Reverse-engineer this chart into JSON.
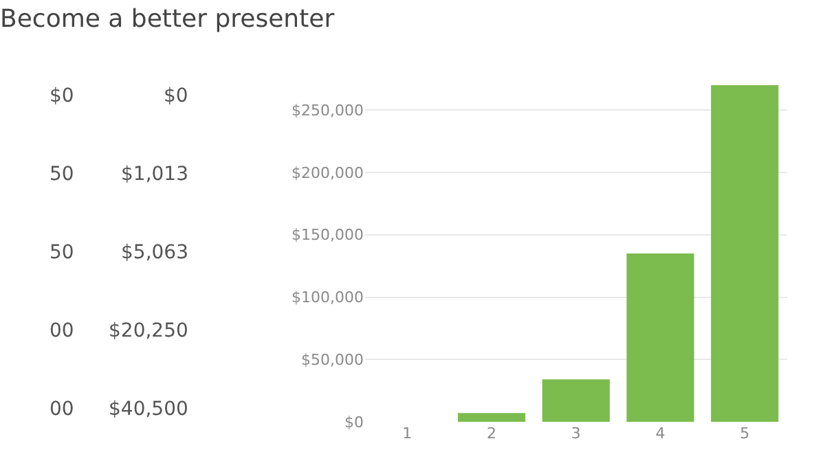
{
  "chart_data": {
    "type": "bar",
    "title": "Become a better presenter",
    "categories": [
      "1",
      "2",
      "3",
      "4",
      "5"
    ],
    "values": [
      0,
      7000,
      34000,
      135000,
      270000
    ],
    "color": "#7cbb4e",
    "ylim": [
      0,
      270000
    ],
    "yticks": [
      {
        "value": 0,
        "label": "$0"
      },
      {
        "value": 50000,
        "label": "$50,000"
      },
      {
        "value": 100000,
        "label": "$100,000"
      },
      {
        "value": 150000,
        "label": "$150,000"
      },
      {
        "value": 200000,
        "label": "$200,000"
      },
      {
        "value": 250000,
        "label": "$250,000"
      }
    ],
    "grid": "y",
    "annotations": [
      "$0",
      "$0",
      "50",
      "$1,013",
      "50",
      "$5,063",
      "00",
      "$20,250",
      "00",
      "$40,500"
    ]
  }
}
